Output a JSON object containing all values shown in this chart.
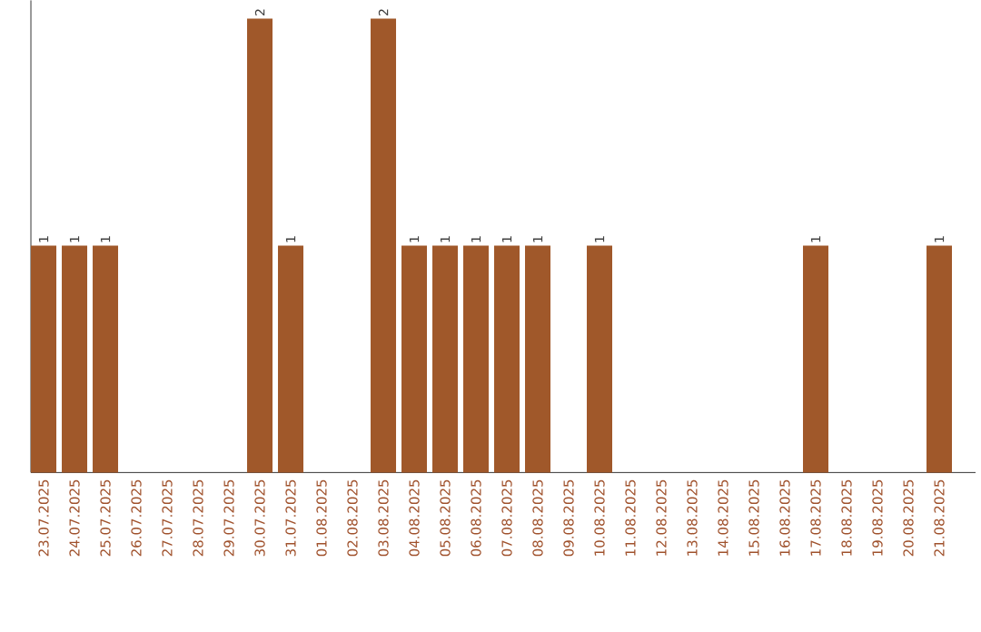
{
  "chart_data": {
    "type": "bar",
    "tick_labels": "x",
    "color": "#a0582a",
    "categories": [
      "23.07.2025",
      "24.07.2025",
      "25.07.2025",
      "26.07.2025",
      "27.07.2025",
      "28.07.2025",
      "29.07.2025",
      "30.07.2025",
      "31.07.2025",
      "01.08.2025",
      "02.08.2025",
      "03.08.2025",
      "04.08.2025",
      "05.08.2025",
      "06.08.2025",
      "07.08.2025",
      "08.08.2025",
      "09.08.2025",
      "10.08.2025",
      "11.08.2025",
      "12.08.2025",
      "13.08.2025",
      "14.08.2025",
      "15.08.2025",
      "16.08.2025",
      "17.08.2025",
      "18.08.2025",
      "19.08.2025",
      "20.08.2025",
      "21.08.2025"
    ],
    "values": [
      1,
      1,
      1,
      0,
      0,
      0,
      0,
      2,
      1,
      0,
      0,
      2,
      1,
      1,
      1,
      1,
      1,
      0,
      1,
      0,
      0,
      0,
      0,
      0,
      0,
      1,
      0,
      0,
      0,
      1
    ],
    "value_labels": [
      "1",
      "1",
      "1",
      null,
      null,
      null,
      null,
      "2",
      "1",
      null,
      null,
      "2",
      "1",
      "1",
      "1",
      "1",
      "1",
      null,
      "1",
      null,
      null,
      null,
      null,
      null,
      null,
      "1",
      null,
      null,
      null,
      "1"
    ]
  }
}
